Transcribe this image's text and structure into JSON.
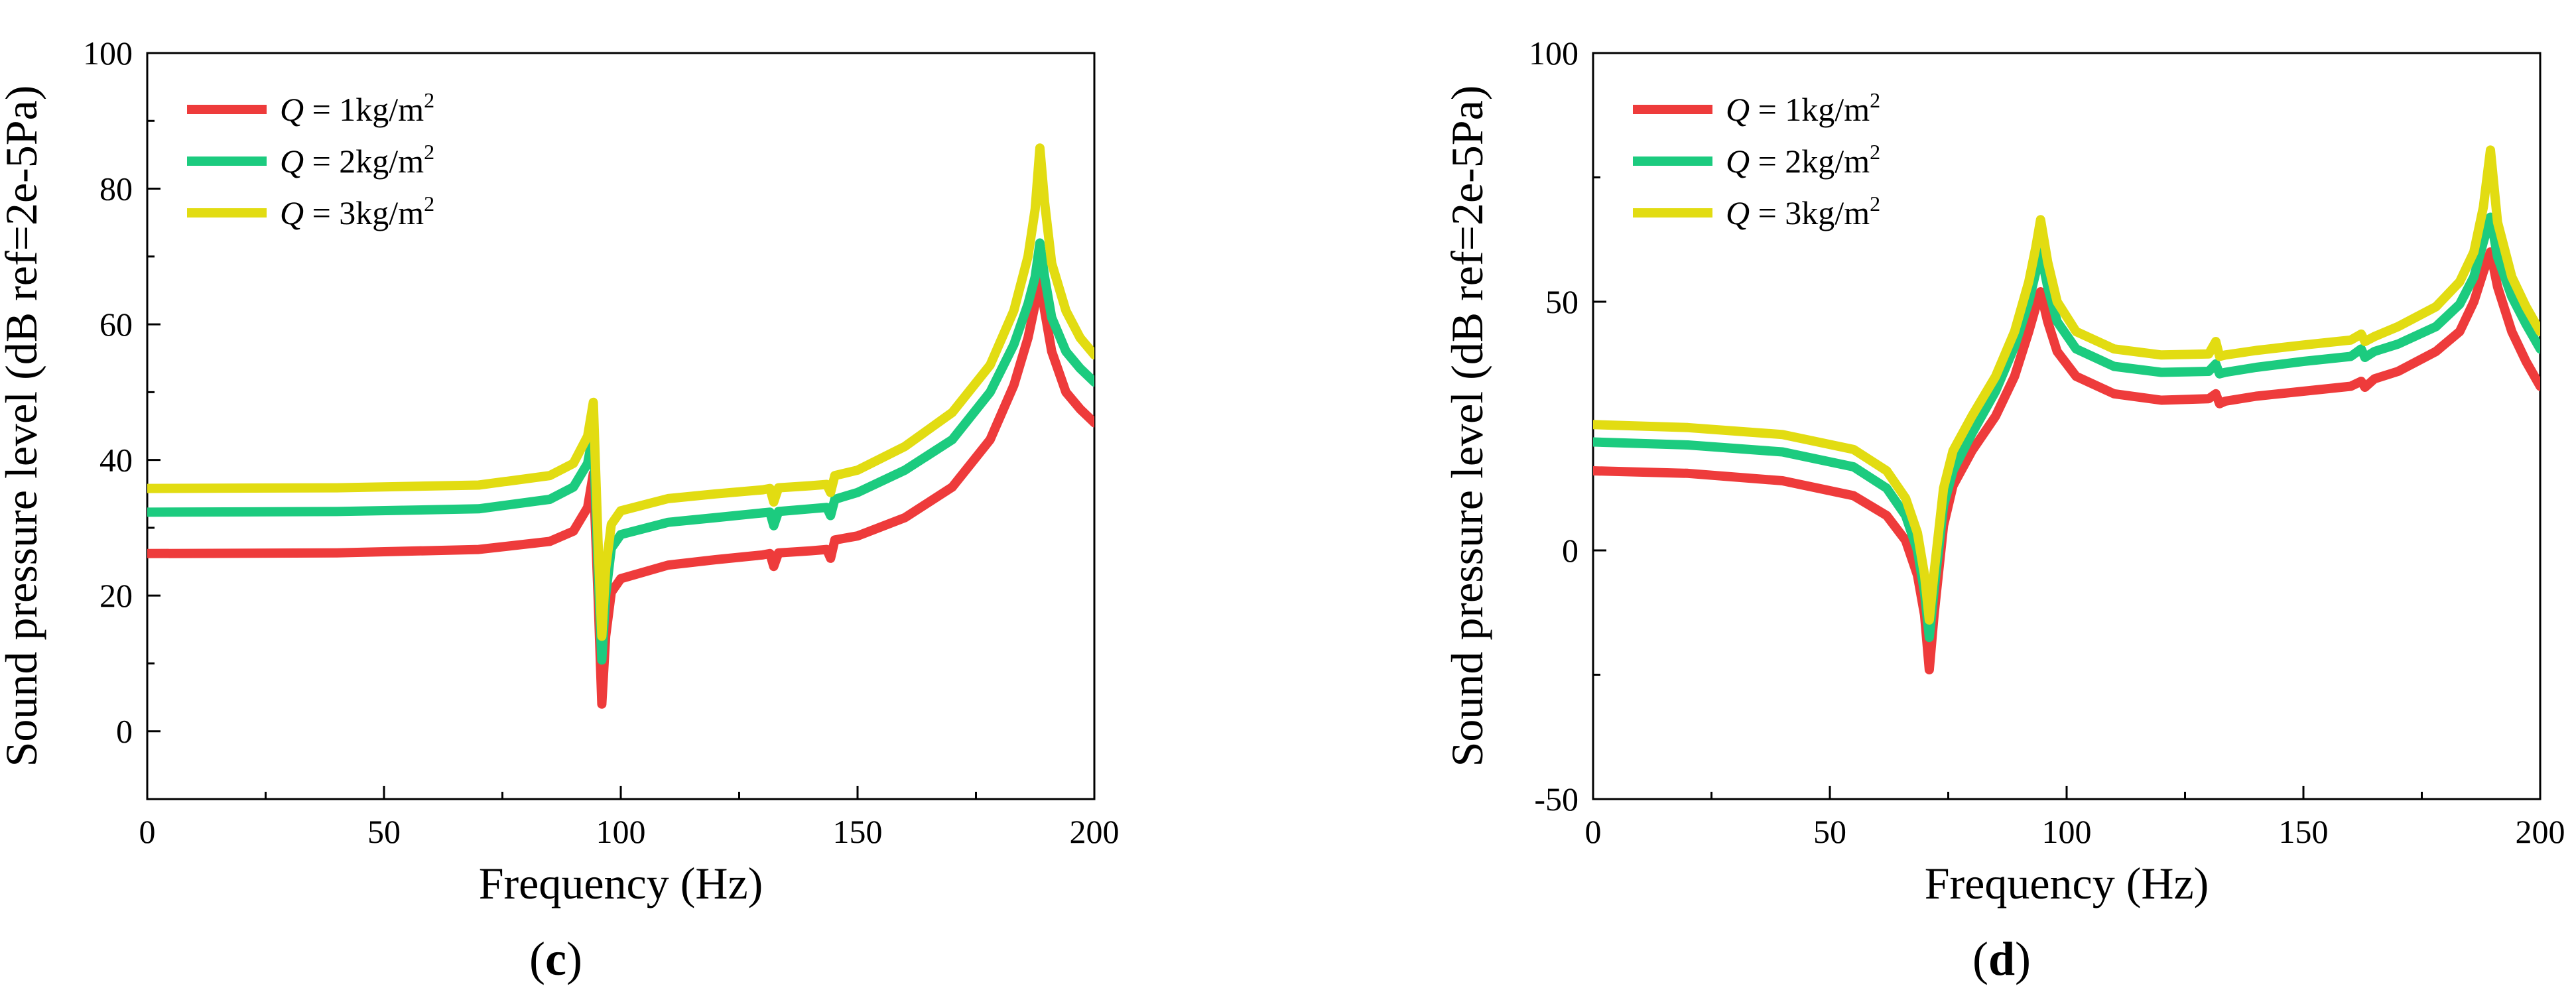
{
  "chart_data": [
    {
      "type": "line",
      "panel_label": "c",
      "xlabel": "Frequency (Hz)",
      "ylabel": "Sound pressure level (dB ref=2e-5Pa)",
      "xlim": [
        0,
        200
      ],
      "ylim": [
        -10,
        100
      ],
      "xticks": [
        0,
        50,
        100,
        150,
        200
      ],
      "yticks": [
        0,
        20,
        40,
        60,
        80,
        100
      ],
      "grid": false,
      "legend_position": "top-left",
      "series": [
        {
          "name": "Q = 1kg/m2",
          "legend_prefix": "Q",
          "legend_mid": " = 1kg/m",
          "legend_sup": "2",
          "color": "#ee3b3b",
          "points": [
            [
              0,
              26.2
            ],
            [
              40,
              26.3
            ],
            [
              70,
              26.8
            ],
            [
              85,
              28
            ],
            [
              90,
              29.5
            ],
            [
              93,
              33
            ],
            [
              94.2,
              38
            ],
            [
              95.2,
              20
            ],
            [
              96,
              4
            ],
            [
              96.8,
              14
            ],
            [
              98,
              20.5
            ],
            [
              100,
              22.5
            ],
            [
              110,
              24.5
            ],
            [
              120,
              25.3
            ],
            [
              130,
              26
            ],
            [
              131.5,
              26.2
            ],
            [
              132.3,
              24.3
            ],
            [
              133.3,
              26.3
            ],
            [
              140,
              26.6
            ],
            [
              143.5,
              26.8
            ],
            [
              144.3,
              25.5
            ],
            [
              145.2,
              28.2
            ],
            [
              150,
              28.8
            ],
            [
              160,
              31.5
            ],
            [
              170,
              36
            ],
            [
              178,
              43
            ],
            [
              183,
              51
            ],
            [
              186,
              58
            ],
            [
              187.5,
              63
            ],
            [
              188.5,
              67
            ],
            [
              189.5,
              62
            ],
            [
              191,
              56
            ],
            [
              194,
              50
            ],
            [
              197,
              47.5
            ],
            [
              200,
              45.5
            ]
          ]
        },
        {
          "name": "Q = 2kg/m2",
          "legend_prefix": "Q",
          "legend_mid": " = 2kg/m",
          "legend_sup": "2",
          "color": "#1ccb7f",
          "points": [
            [
              0,
              32.3
            ],
            [
              40,
              32.4
            ],
            [
              70,
              32.8
            ],
            [
              85,
              34.2
            ],
            [
              90,
              36
            ],
            [
              93,
              39.5
            ],
            [
              94.2,
              44
            ],
            [
              95.2,
              24
            ],
            [
              96,
              10.5
            ],
            [
              96.8,
              20
            ],
            [
              98,
              27
            ],
            [
              100,
              29
            ],
            [
              110,
              30.8
            ],
            [
              120,
              31.5
            ],
            [
              130,
              32.2
            ],
            [
              131.5,
              32.3
            ],
            [
              132.3,
              30.3
            ],
            [
              133.3,
              32.4
            ],
            [
              140,
              32.8
            ],
            [
              143.5,
              33
            ],
            [
              144.3,
              31.8
            ],
            [
              145.2,
              34.2
            ],
            [
              150,
              35.2
            ],
            [
              160,
              38.5
            ],
            [
              170,
              43
            ],
            [
              178,
              50
            ],
            [
              183,
              57
            ],
            [
              186,
              63
            ],
            [
              187.5,
              67
            ],
            [
              188.5,
              72
            ],
            [
              189.5,
              67
            ],
            [
              191,
              61
            ],
            [
              194,
              56
            ],
            [
              197,
              53.5
            ],
            [
              200,
              51.5
            ]
          ]
        },
        {
          "name": "Q = 3kg/m2",
          "legend_prefix": "Q",
          "legend_mid": " = 3kg/m",
          "legend_sup": "2",
          "color": "#e2dc12",
          "points": [
            [
              0,
              35.8
            ],
            [
              40,
              35.9
            ],
            [
              70,
              36.3
            ],
            [
              85,
              37.7
            ],
            [
              90,
              39.5
            ],
            [
              93,
              43.5
            ],
            [
              94.2,
              48.5
            ],
            [
              95.2,
              28
            ],
            [
              96,
              14
            ],
            [
              96.8,
              24
            ],
            [
              98,
              30.5
            ],
            [
              100,
              32.5
            ],
            [
              110,
              34.3
            ],
            [
              120,
              35
            ],
            [
              130,
              35.6
            ],
            [
              131.5,
              35.8
            ],
            [
              132.3,
              33.8
            ],
            [
              133.3,
              35.9
            ],
            [
              140,
              36.2
            ],
            [
              143.5,
              36.4
            ],
            [
              144.3,
              35.2
            ],
            [
              145.2,
              37.7
            ],
            [
              150,
              38.5
            ],
            [
              160,
              42
            ],
            [
              170,
              47
            ],
            [
              178,
              54
            ],
            [
              183,
              62
            ],
            [
              186,
              70
            ],
            [
              187.5,
              77
            ],
            [
              188.5,
              86
            ],
            [
              189.5,
              78
            ],
            [
              191,
              69
            ],
            [
              194,
              62
            ],
            [
              197,
              58
            ],
            [
              200,
              55.5
            ]
          ]
        }
      ]
    },
    {
      "type": "line",
      "panel_label": "d",
      "xlabel": "Frequency (Hz)",
      "ylabel": "Sound pressure level (dB ref=2e-5Pa)",
      "xlim": [
        0,
        200
      ],
      "ylim": [
        -50,
        100
      ],
      "xticks": [
        0,
        50,
        100,
        150,
        200
      ],
      "yticks": [
        -50,
        0,
        50,
        100
      ],
      "grid": false,
      "legend_position": "top-left",
      "series": [
        {
          "name": "Q = 1kg/m2",
          "legend_prefix": "Q",
          "legend_mid": " = 1kg/m",
          "legend_sup": "2",
          "color": "#ee3b3b",
          "points": [
            [
              0,
              16
            ],
            [
              20,
              15.5
            ],
            [
              40,
              14
            ],
            [
              55,
              11
            ],
            [
              62,
              7
            ],
            [
              66,
              2
            ],
            [
              68.5,
              -5
            ],
            [
              70,
              -13
            ],
            [
              71,
              -24
            ],
            [
              72,
              -13
            ],
            [
              74,
              5
            ],
            [
              76,
              13
            ],
            [
              80,
              20
            ],
            [
              85,
              27
            ],
            [
              89,
              35
            ],
            [
              92,
              44
            ],
            [
              93.5,
              49
            ],
            [
              94.5,
              52
            ],
            [
              96,
              46
            ],
            [
              98,
              40
            ],
            [
              102,
              35
            ],
            [
              110,
              31.5
            ],
            [
              120,
              30.2
            ],
            [
              130,
              30.5
            ],
            [
              131.5,
              31.5
            ],
            [
              132.3,
              29.5
            ],
            [
              133.5,
              30
            ],
            [
              140,
              31
            ],
            [
              150,
              32
            ],
            [
              160,
              33
            ],
            [
              162.2,
              34
            ],
            [
              163,
              32.8
            ],
            [
              165,
              34.5
            ],
            [
              170,
              36
            ],
            [
              178,
              40
            ],
            [
              183,
              44
            ],
            [
              186,
              50
            ],
            [
              188,
              56
            ],
            [
              189.5,
              60
            ],
            [
              191,
              53
            ],
            [
              194,
              44
            ],
            [
              197,
              38
            ],
            [
              200,
              33
            ]
          ]
        },
        {
          "name": "Q = 2kg/m2",
          "legend_prefix": "Q",
          "legend_mid": " = 2kg/m",
          "legend_sup": "2",
          "color": "#1ccb7f",
          "points": [
            [
              0,
              21.8
            ],
            [
              20,
              21.2
            ],
            [
              40,
              19.8
            ],
            [
              55,
              16.8
            ],
            [
              62,
              12.5
            ],
            [
              66,
              7
            ],
            [
              68.5,
              0
            ],
            [
              70,
              -8.5
            ],
            [
              71,
              -17.5
            ],
            [
              72,
              -8
            ],
            [
              74,
              9
            ],
            [
              76,
              16
            ],
            [
              80,
              23.5
            ],
            [
              85,
              32
            ],
            [
              89,
              41
            ],
            [
              92,
              50
            ],
            [
              93.5,
              56
            ],
            [
              94.5,
              60
            ],
            [
              96,
              53
            ],
            [
              98,
              46
            ],
            [
              102,
              40.5
            ],
            [
              110,
              37
            ],
            [
              120,
              35.8
            ],
            [
              130,
              36
            ],
            [
              131.5,
              37.5
            ],
            [
              132.3,
              35.5
            ],
            [
              133.5,
              35.8
            ],
            [
              140,
              36.8
            ],
            [
              150,
              38
            ],
            [
              160,
              39
            ],
            [
              162.2,
              40.5
            ],
            [
              163,
              38.8
            ],
            [
              165,
              40
            ],
            [
              170,
              41.5
            ],
            [
              178,
              45
            ],
            [
              183,
              49.5
            ],
            [
              186,
              55
            ],
            [
              188,
              62
            ],
            [
              189.5,
              67
            ],
            [
              191,
              59
            ],
            [
              194,
              51
            ],
            [
              197,
              45.5
            ],
            [
              200,
              40.5
            ]
          ]
        },
        {
          "name": "Q = 3kg/m2",
          "legend_prefix": "Q",
          "legend_mid": " = 3kg/m",
          "legend_sup": "2",
          "color": "#e2dc12",
          "points": [
            [
              0,
              25.3
            ],
            [
              20,
              24.7
            ],
            [
              40,
              23.3
            ],
            [
              55,
              20.3
            ],
            [
              62,
              16
            ],
            [
              66,
              10.5
            ],
            [
              68.5,
              3.5
            ],
            [
              70,
              -5
            ],
            [
              71,
              -14
            ],
            [
              72,
              -4.5
            ],
            [
              74,
              12.5
            ],
            [
              76,
              20
            ],
            [
              80,
              27
            ],
            [
              85,
              35
            ],
            [
              89,
              44
            ],
            [
              92,
              54
            ],
            [
              93.5,
              61
            ],
            [
              94.5,
              66.5
            ],
            [
              96,
              58
            ],
            [
              98,
              50
            ],
            [
              102,
              44
            ],
            [
              110,
              40.5
            ],
            [
              120,
              39.3
            ],
            [
              130,
              39.5
            ],
            [
              131.5,
              42
            ],
            [
              132.3,
              39
            ],
            [
              133.5,
              39.3
            ],
            [
              140,
              40.2
            ],
            [
              150,
              41.3
            ],
            [
              160,
              42.3
            ],
            [
              162.2,
              43.5
            ],
            [
              163,
              42
            ],
            [
              165,
              43
            ],
            [
              170,
              45
            ],
            [
              178,
              49
            ],
            [
              183,
              54
            ],
            [
              186,
              60
            ],
            [
              188,
              69
            ],
            [
              189.5,
              80.5
            ],
            [
              191,
              66
            ],
            [
              194,
              55
            ],
            [
              197,
              49
            ],
            [
              200,
              44
            ]
          ]
        }
      ]
    }
  ]
}
